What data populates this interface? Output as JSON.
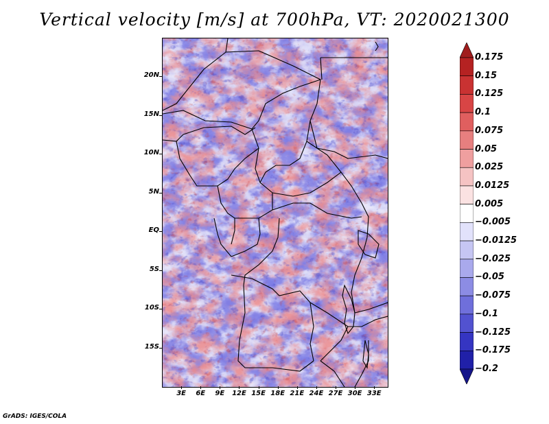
{
  "title": "Vertical velocity [m/s] at 700hPa, VT: 2020021300",
  "credit": "GrADS: IGES/COLA",
  "map": {
    "variable": "Vertical velocity",
    "units": "m/s",
    "level": "700hPa",
    "valid_time": "2020021300",
    "lat_labels": [
      "20N",
      "15N",
      "10N",
      "5N",
      "EQ",
      "5S",
      "10S",
      "15S"
    ],
    "lon_labels": [
      "3E",
      "6E",
      "9E",
      "12E",
      "15E",
      "18E",
      "21E",
      "24E",
      "27E",
      "30E",
      "33E"
    ],
    "lat_values": [
      20,
      15,
      10,
      5,
      0,
      -5,
      -10,
      -15
    ],
    "lon_values": [
      3,
      6,
      9,
      12,
      15,
      18,
      21,
      24,
      27,
      30,
      33
    ],
    "lat_range": [
      -20,
      25
    ],
    "lon_range": [
      0,
      35
    ]
  },
  "colorbar": {
    "labels": [
      "0.175",
      "0.15",
      "0.125",
      "0.1",
      "0.075",
      "0.05",
      "0.025",
      "0.0125",
      "0.005",
      "−0.005",
      "−0.0125",
      "−0.025",
      "−0.05",
      "−0.075",
      "−0.1",
      "−0.125",
      "−0.175",
      "−0.2"
    ],
    "colors": [
      "#a01d1d",
      "#b52222",
      "#c93232",
      "#d84545",
      "#e05f5f",
      "#e77f7f",
      "#ef9f9f",
      "#f5c3c3",
      "#fbe2e2",
      "#ffffff",
      "#e2e2fb",
      "#c6c6f3",
      "#a9a9ec",
      "#8c8ce4",
      "#6f6fdb",
      "#5252d0",
      "#3535c2",
      "#2020a8",
      "#15158a"
    ]
  }
}
